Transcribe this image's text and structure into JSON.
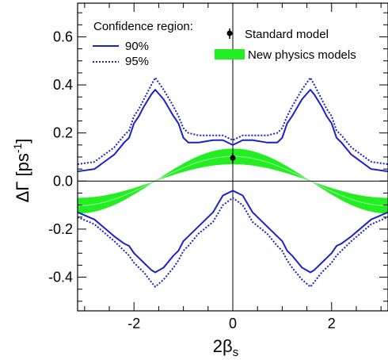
{
  "chart_data": {
    "type": "line",
    "xlabel": "2β",
    "xlabel_sub": "s",
    "ylabel": "ΔΓ [ps",
    "ylabel_sup": "-1",
    "ylabel_close": "]",
    "xlim": [
      -3.1416,
      3.1416
    ],
    "ylim": [
      -0.54,
      0.74
    ],
    "x_ticks": [
      -2,
      0,
      2
    ],
    "x_tick_labels": [
      "-2",
      "0",
      "2"
    ],
    "y_ticks": [
      -0.4,
      -0.2,
      0.0,
      0.2,
      0.4,
      0.6
    ],
    "y_tick_labels": [
      "-0.4",
      "-0.2",
      "0.0",
      "0.2",
      "0.4",
      "0.6"
    ],
    "legend": {
      "title": "Confidence region:",
      "entries": [
        "90%",
        "95%"
      ],
      "sm_label": "Standard model",
      "np_label": "New physics models",
      "placement_left": "top-left",
      "placement_right": "top-right"
    },
    "series": [
      {
        "name": "90%",
        "style": "solid",
        "color": "#1a22c8",
        "x": [
          -3.1416,
          -2.8,
          -2.4,
          -2.2,
          -2.1,
          -2.0,
          -1.9,
          -1.8,
          -1.65,
          -1.57,
          -1.4,
          -1.2,
          -1.1,
          -1.0,
          -0.9,
          -0.7,
          -0.4,
          -0.2,
          0.0,
          0.2,
          0.4,
          0.7,
          0.9,
          1.0,
          1.1,
          1.2,
          1.4,
          1.57,
          1.65,
          1.8,
          1.9,
          2.0,
          2.1,
          2.2,
          2.4,
          2.8,
          3.1416
        ],
        "y": [
          0.04,
          0.05,
          0.11,
          0.16,
          0.18,
          0.24,
          0.27,
          0.31,
          0.36,
          0.38,
          0.34,
          0.27,
          0.24,
          0.18,
          0.16,
          0.16,
          0.17,
          0.17,
          0.15,
          0.17,
          0.17,
          0.16,
          0.16,
          0.18,
          0.24,
          0.27,
          0.34,
          0.38,
          0.36,
          0.31,
          0.27,
          0.24,
          0.18,
          0.16,
          0.11,
          0.05,
          0.04
        ]
      },
      {
        "name": "90%",
        "style": "solid",
        "color": "#1a22c8",
        "x": [
          -3.1416,
          -2.8,
          -2.4,
          -2.2,
          -2.1,
          -2.0,
          -1.9,
          -1.8,
          -1.65,
          -1.57,
          -1.4,
          -1.2,
          -1.1,
          -1.0,
          -0.9,
          -0.7,
          -0.4,
          -0.2,
          0.0,
          0.2,
          0.4,
          0.7,
          0.9,
          1.0,
          1.1,
          1.2,
          1.4,
          1.57,
          1.65,
          1.8,
          1.9,
          2.0,
          2.1,
          2.2,
          2.4,
          2.8,
          3.1416
        ],
        "y": [
          -0.13,
          -0.16,
          -0.23,
          -0.26,
          -0.27,
          -0.3,
          -0.32,
          -0.34,
          -0.37,
          -0.38,
          -0.36,
          -0.31,
          -0.29,
          -0.25,
          -0.23,
          -0.19,
          -0.13,
          -0.06,
          -0.04,
          -0.06,
          -0.13,
          -0.19,
          -0.23,
          -0.25,
          -0.29,
          -0.31,
          -0.36,
          -0.38,
          -0.37,
          -0.34,
          -0.32,
          -0.3,
          -0.27,
          -0.26,
          -0.23,
          -0.16,
          -0.13
        ]
      },
      {
        "name": "95%",
        "style": "dotted",
        "color": "#1a22c8",
        "x": [
          -3.1416,
          -2.8,
          -2.4,
          -2.2,
          -2.1,
          -2.0,
          -1.9,
          -1.8,
          -1.65,
          -1.57,
          -1.4,
          -1.2,
          -1.1,
          -1.0,
          -0.9,
          -0.7,
          -0.4,
          -0.2,
          0.0,
          0.2,
          0.4,
          0.7,
          0.9,
          1.0,
          1.1,
          1.2,
          1.4,
          1.57,
          1.65,
          1.8,
          1.9,
          2.0,
          2.1,
          2.2,
          2.4,
          2.8,
          3.1416
        ],
        "y": [
          0.07,
          0.08,
          0.14,
          0.19,
          0.21,
          0.27,
          0.3,
          0.34,
          0.4,
          0.43,
          0.38,
          0.31,
          0.27,
          0.22,
          0.2,
          0.19,
          0.19,
          0.19,
          0.17,
          0.19,
          0.19,
          0.19,
          0.2,
          0.22,
          0.27,
          0.31,
          0.38,
          0.43,
          0.4,
          0.34,
          0.3,
          0.27,
          0.21,
          0.19,
          0.14,
          0.08,
          0.07
        ]
      },
      {
        "name": "95%",
        "style": "dotted",
        "color": "#1a22c8",
        "x": [
          -3.1416,
          -2.8,
          -2.4,
          -2.2,
          -2.1,
          -2.0,
          -1.9,
          -1.8,
          -1.65,
          -1.57,
          -1.4,
          -1.2,
          -1.1,
          -1.0,
          -0.9,
          -0.7,
          -0.4,
          -0.2,
          0.0,
          0.2,
          0.4,
          0.7,
          0.9,
          1.0,
          1.1,
          1.2,
          1.4,
          1.57,
          1.65,
          1.8,
          1.9,
          2.0,
          2.1,
          2.2,
          2.4,
          2.8,
          3.1416
        ],
        "y": [
          -0.15,
          -0.18,
          -0.25,
          -0.29,
          -0.31,
          -0.34,
          -0.36,
          -0.38,
          -0.42,
          -0.44,
          -0.41,
          -0.36,
          -0.33,
          -0.29,
          -0.27,
          -0.22,
          -0.17,
          -0.1,
          -0.07,
          -0.1,
          -0.17,
          -0.22,
          -0.27,
          -0.29,
          -0.33,
          -0.36,
          -0.41,
          -0.44,
          -0.42,
          -0.38,
          -0.36,
          -0.34,
          -0.31,
          -0.29,
          -0.25,
          -0.18,
          -0.15
        ]
      }
    ],
    "new_physics_band": {
      "name": "New physics models",
      "color": "#22ee22",
      "inner_color": "#8cf08c",
      "formula": "y = A*cos(x)",
      "amplitude_min": 0.07,
      "amplitude_max": 0.135
    },
    "standard_model": {
      "name": "Standard model",
      "x": 0.0,
      "y": 0.096,
      "err": 0.04
    },
    "reference_lines": {
      "horizontal_y": 0.0,
      "vertical_x": 0.0
    },
    "grid": false
  }
}
